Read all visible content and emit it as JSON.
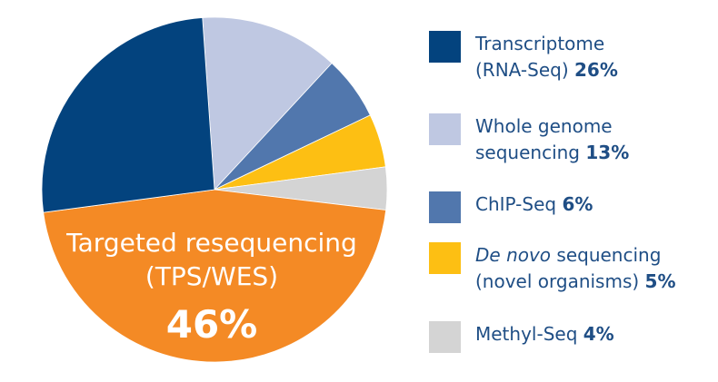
{
  "chart_data": {
    "type": "pie",
    "slices": [
      {
        "label_line1": "Transcriptome",
        "label_line2": "(RNA-Seq)",
        "pct_text": "26%",
        "value": 26,
        "color": "#03437e"
      },
      {
        "label_line1": "Whole genome",
        "label_line2": "sequencing",
        "pct_text": "13%",
        "value": 13,
        "color": "#bfc8e2"
      },
      {
        "label_line1": "ChIP-Seq",
        "label_line2": "",
        "pct_text": "6%",
        "value": 6,
        "color": "#5177ad"
      },
      {
        "label_line1_italic": "De novo",
        "label_line1_rest": " sequencing",
        "label_line2": "(novel organisms)",
        "pct_text": "5%",
        "value": 5,
        "color": "#fdbf13"
      },
      {
        "label_line1": "Methyl-Seq",
        "label_line2": "",
        "pct_text": "4%",
        "value": 4,
        "color": "#d4d4d4"
      },
      {
        "label_line1": "Targeted resequencing",
        "label_line2": "(TPS/WES)",
        "pct_text": "46%",
        "value": 46,
        "color": "#f48a25"
      }
    ]
  }
}
